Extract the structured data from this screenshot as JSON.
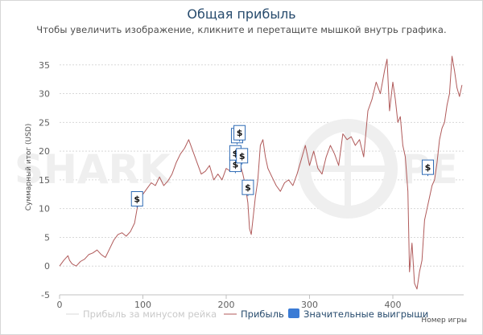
{
  "title": "Общая прибыль",
  "subtitle": "Чтобы увеличить изображение, кликните и перетащите мышкой внутрь графика.",
  "watermark": {
    "left": "SHARK",
    "right": "PE"
  },
  "chart_data": {
    "type": "line",
    "xlabel": "Номер игры",
    "ylabel": "Суммарный итог (USD)",
    "xlim": [
      0,
      485
    ],
    "ylim": [
      -5,
      40
    ],
    "x_ticks": [
      0,
      100,
      200,
      300,
      400
    ],
    "y_ticks": [
      -5,
      0,
      5,
      10,
      15,
      20,
      25,
      30,
      35
    ],
    "grid": true,
    "legend_position": "bottom",
    "colors": {
      "profit": "#b05a5a",
      "rake": "#d9d9d9",
      "wins": "#3a7bd5"
    },
    "series": [
      {
        "name": "Прибыль за минусом рейка",
        "values": []
      },
      {
        "name": "Прибыль",
        "points": [
          [
            0,
            0
          ],
          [
            5,
            1
          ],
          [
            10,
            1.8
          ],
          [
            12,
            1
          ],
          [
            15,
            0.4
          ],
          [
            20,
            0
          ],
          [
            25,
            0.8
          ],
          [
            30,
            1.2
          ],
          [
            35,
            2
          ],
          [
            40,
            2.3
          ],
          [
            45,
            2.8
          ],
          [
            50,
            2
          ],
          [
            55,
            1.5
          ],
          [
            60,
            3
          ],
          [
            65,
            4.5
          ],
          [
            70,
            5.5
          ],
          [
            75,
            5.8
          ],
          [
            80,
            5.2
          ],
          [
            85,
            6
          ],
          [
            90,
            7.5
          ],
          [
            93,
            10
          ],
          [
            96,
            12
          ],
          [
            100,
            12.5
          ],
          [
            105,
            13.5
          ],
          [
            110,
            14.5
          ],
          [
            115,
            14
          ],
          [
            120,
            15.5
          ],
          [
            125,
            14
          ],
          [
            130,
            14.8
          ],
          [
            135,
            16
          ],
          [
            140,
            18
          ],
          [
            145,
            19.5
          ],
          [
            150,
            20.5
          ],
          [
            155,
            22
          ],
          [
            160,
            20
          ],
          [
            165,
            18
          ],
          [
            170,
            16
          ],
          [
            175,
            16.5
          ],
          [
            180,
            17.5
          ],
          [
            185,
            15
          ],
          [
            190,
            16
          ],
          [
            195,
            15
          ],
          [
            200,
            17
          ],
          [
            205,
            16.5
          ],
          [
            210,
            17
          ],
          [
            213,
            19
          ],
          [
            216,
            18
          ],
          [
            220,
            16
          ],
          [
            223,
            14
          ],
          [
            226,
            11
          ],
          [
            228,
            6.5
          ],
          [
            230,
            5.5
          ],
          [
            232,
            8
          ],
          [
            235,
            12
          ],
          [
            238,
            15
          ],
          [
            241,
            21
          ],
          [
            244,
            22
          ],
          [
            247,
            19
          ],
          [
            250,
            17
          ],
          [
            255,
            15.5
          ],
          [
            260,
            14
          ],
          [
            265,
            13
          ],
          [
            270,
            14.5
          ],
          [
            275,
            15
          ],
          [
            280,
            14
          ],
          [
            285,
            16
          ],
          [
            290,
            18.5
          ],
          [
            295,
            21
          ],
          [
            300,
            17.5
          ],
          [
            305,
            20
          ],
          [
            310,
            17
          ],
          [
            315,
            16
          ],
          [
            320,
            19
          ],
          [
            325,
            21
          ],
          [
            330,
            19.5
          ],
          [
            335,
            17.5
          ],
          [
            340,
            23
          ],
          [
            345,
            22
          ],
          [
            350,
            22.5
          ],
          [
            355,
            21
          ],
          [
            360,
            22
          ],
          [
            365,
            19
          ],
          [
            370,
            27
          ],
          [
            375,
            29
          ],
          [
            380,
            32
          ],
          [
            385,
            30
          ],
          [
            390,
            34
          ],
          [
            393,
            36
          ],
          [
            396,
            27
          ],
          [
            400,
            32
          ],
          [
            403,
            29
          ],
          [
            406,
            25
          ],
          [
            409,
            26
          ],
          [
            412,
            21
          ],
          [
            415,
            19
          ],
          [
            418,
            13
          ],
          [
            420,
            -1
          ],
          [
            423,
            4
          ],
          [
            426,
            -3
          ],
          [
            429,
            -4
          ],
          [
            432,
            -1
          ],
          [
            435,
            1
          ],
          [
            438,
            8
          ],
          [
            441,
            10
          ],
          [
            444,
            12
          ],
          [
            447,
            14
          ],
          [
            450,
            15
          ],
          [
            453,
            18
          ],
          [
            456,
            22
          ],
          [
            459,
            24
          ],
          [
            462,
            25
          ],
          [
            465,
            28
          ],
          [
            468,
            30
          ],
          [
            471,
            36.5
          ],
          [
            474,
            34
          ],
          [
            477,
            31
          ],
          [
            480,
            29.5
          ],
          [
            483,
            31.5
          ]
        ]
      }
    ],
    "markers": {
      "name": "Значительные выигрыши",
      "symbol": "$",
      "points": [
        [
          93,
          11
        ],
        [
          211,
          17
        ],
        [
          211,
          19
        ],
        [
          213,
          22
        ],
        [
          216,
          22.5
        ],
        [
          219,
          18.5
        ],
        [
          226,
          13
        ],
        [
          442,
          16.5
        ]
      ]
    }
  }
}
